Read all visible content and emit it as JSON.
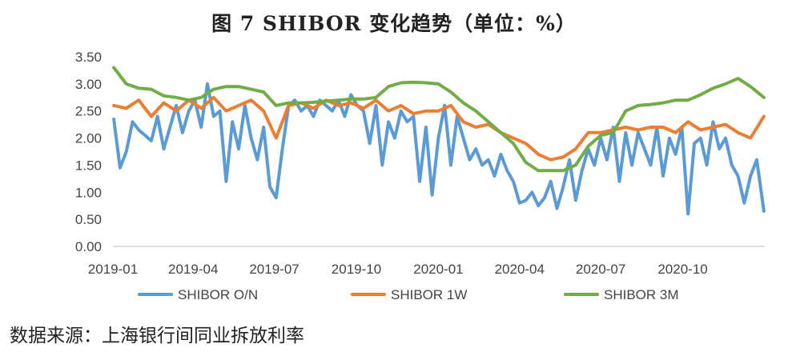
{
  "title": "图 7   SHIBOR 变化趋势（单位：%）",
  "source": "数据来源：上海银行间同业拆放利率",
  "chart_data": {
    "type": "line",
    "ylim": [
      0,
      3.5
    ],
    "y_ticks": [
      "0.00",
      "0.50",
      "1.00",
      "1.50",
      "2.00",
      "2.50",
      "3.00",
      "3.50"
    ],
    "x_ticks": [
      "2019-01",
      "2019-04",
      "2019-07",
      "2019-10",
      "2020-01",
      "2020-04",
      "2020-07",
      "2020-10"
    ],
    "x_range": [
      "2019-01",
      "2020-12"
    ],
    "grid": false,
    "legend": "bottom",
    "series": [
      {
        "name": "SHIBOR O/N",
        "color": "#5B9BD5",
        "x": [
          "2019-01-02",
          "2019-01-09",
          "2019-01-16",
          "2019-01-23",
          "2019-01-30",
          "2019-02-13",
          "2019-02-20",
          "2019-02-27",
          "2019-03-06",
          "2019-03-13",
          "2019-03-20",
          "2019-03-27",
          "2019-04-03",
          "2019-04-10",
          "2019-04-17",
          "2019-04-24",
          "2019-05-01",
          "2019-05-08",
          "2019-05-15",
          "2019-05-22",
          "2019-05-29",
          "2019-06-05",
          "2019-06-12",
          "2019-06-19",
          "2019-06-26",
          "2019-07-03",
          "2019-07-10",
          "2019-07-17",
          "2019-07-24",
          "2019-07-31",
          "2019-08-07",
          "2019-08-14",
          "2019-08-21",
          "2019-08-28",
          "2019-09-04",
          "2019-09-11",
          "2019-09-18",
          "2019-09-25",
          "2019-10-02",
          "2019-10-09",
          "2019-10-16",
          "2019-10-23",
          "2019-10-30",
          "2019-11-06",
          "2019-11-13",
          "2019-11-20",
          "2019-11-27",
          "2019-12-04",
          "2019-12-11",
          "2019-12-18",
          "2019-12-25",
          "2020-01-01",
          "2020-01-08",
          "2020-01-15",
          "2020-01-22",
          "2020-01-29",
          "2020-02-05",
          "2020-02-12",
          "2020-02-19",
          "2020-02-26",
          "2020-03-04",
          "2020-03-11",
          "2020-03-18",
          "2020-03-25",
          "2020-04-01",
          "2020-04-08",
          "2020-04-15",
          "2020-04-22",
          "2020-04-29",
          "2020-05-06",
          "2020-05-13",
          "2020-05-20",
          "2020-05-27",
          "2020-06-03",
          "2020-06-10",
          "2020-06-17",
          "2020-06-24",
          "2020-07-01",
          "2020-07-08",
          "2020-07-15",
          "2020-07-22",
          "2020-07-29",
          "2020-08-05",
          "2020-08-12",
          "2020-08-19",
          "2020-08-26",
          "2020-09-02",
          "2020-09-09",
          "2020-09-16",
          "2020-09-23",
          "2020-09-30",
          "2020-10-07",
          "2020-10-14",
          "2020-10-21",
          "2020-10-28",
          "2020-11-04",
          "2020-11-11",
          "2020-11-18",
          "2020-11-25",
          "2020-12-02",
          "2020-12-09",
          "2020-12-16",
          "2020-12-23",
          "2020-12-31"
        ],
        "values": [
          2.35,
          1.45,
          1.75,
          2.3,
          2.15,
          1.95,
          2.4,
          1.8,
          2.2,
          2.6,
          2.1,
          2.5,
          2.7,
          2.2,
          3.0,
          2.4,
          2.5,
          1.2,
          2.3,
          1.8,
          2.6,
          2.0,
          1.6,
          2.2,
          1.1,
          0.9,
          1.8,
          2.6,
          2.7,
          2.5,
          2.6,
          2.4,
          2.7,
          2.6,
          2.5,
          2.7,
          2.4,
          2.8,
          2.6,
          2.5,
          1.9,
          2.6,
          1.5,
          2.3,
          2.0,
          2.5,
          2.3,
          2.4,
          1.2,
          2.2,
          0.95,
          2.0,
          2.6,
          1.5,
          2.4,
          2.0,
          1.6,
          1.8,
          1.5,
          1.6,
          1.3,
          1.7,
          1.4,
          1.2,
          0.8,
          0.85,
          1.0,
          0.75,
          0.9,
          1.2,
          0.7,
          1.1,
          1.6,
          0.85,
          1.4,
          1.8,
          1.5,
          2.0,
          1.6,
          2.2,
          1.2,
          2.1,
          1.5,
          2.1,
          1.8,
          1.5,
          2.2,
          1.3,
          2.0,
          1.7,
          2.2,
          0.6,
          1.9,
          2.0,
          1.5,
          2.3,
          1.8,
          2.0,
          1.5,
          1.3,
          0.8,
          1.3,
          1.6,
          0.65
        ]
      },
      {
        "name": "SHIBOR 1W",
        "color": "#ED7D31",
        "x": [
          "2019-01-02",
          "2019-01-16",
          "2019-01-30",
          "2019-02-13",
          "2019-02-27",
          "2019-03-13",
          "2019-03-27",
          "2019-04-10",
          "2019-04-24",
          "2019-05-08",
          "2019-05-22",
          "2019-06-05",
          "2019-06-19",
          "2019-07-03",
          "2019-07-17",
          "2019-07-31",
          "2019-08-14",
          "2019-08-28",
          "2019-09-11",
          "2019-09-25",
          "2019-10-09",
          "2019-10-23",
          "2019-11-06",
          "2019-11-20",
          "2019-12-04",
          "2019-12-18",
          "2020-01-01",
          "2020-01-15",
          "2020-01-29",
          "2020-02-12",
          "2020-02-26",
          "2020-03-11",
          "2020-03-25",
          "2020-04-08",
          "2020-04-22",
          "2020-05-06",
          "2020-05-20",
          "2020-06-03",
          "2020-06-17",
          "2020-07-01",
          "2020-07-15",
          "2020-07-29",
          "2020-08-12",
          "2020-08-26",
          "2020-09-09",
          "2020-09-23",
          "2020-10-07",
          "2020-10-21",
          "2020-11-04",
          "2020-11-18",
          "2020-12-02",
          "2020-12-16",
          "2020-12-31"
        ],
        "values": [
          2.6,
          2.55,
          2.7,
          2.4,
          2.65,
          2.5,
          2.7,
          2.55,
          2.75,
          2.5,
          2.6,
          2.7,
          2.5,
          2.0,
          2.6,
          2.65,
          2.55,
          2.7,
          2.6,
          2.65,
          2.55,
          2.7,
          2.5,
          2.6,
          2.45,
          2.5,
          2.5,
          2.6,
          2.3,
          2.2,
          2.25,
          2.1,
          2.0,
          1.9,
          1.7,
          1.6,
          1.65,
          1.8,
          2.1,
          2.1,
          2.15,
          2.2,
          2.15,
          2.2,
          2.2,
          2.1,
          2.3,
          2.15,
          2.2,
          2.25,
          2.1,
          2.0,
          2.4
        ]
      },
      {
        "name": "SHIBOR 3M",
        "color": "#70AD47",
        "x": [
          "2019-01-02",
          "2019-01-16",
          "2019-01-30",
          "2019-02-13",
          "2019-02-27",
          "2019-03-13",
          "2019-03-27",
          "2019-04-10",
          "2019-04-24",
          "2019-05-08",
          "2019-05-22",
          "2019-06-05",
          "2019-06-19",
          "2019-07-03",
          "2019-07-17",
          "2019-07-31",
          "2019-08-14",
          "2019-08-28",
          "2019-09-11",
          "2019-09-25",
          "2019-10-09",
          "2019-10-23",
          "2019-11-06",
          "2019-11-20",
          "2019-12-04",
          "2019-12-18",
          "2020-01-01",
          "2020-01-15",
          "2020-01-29",
          "2020-02-12",
          "2020-02-26",
          "2020-03-11",
          "2020-03-25",
          "2020-04-08",
          "2020-04-22",
          "2020-05-06",
          "2020-05-20",
          "2020-06-03",
          "2020-06-17",
          "2020-07-01",
          "2020-07-15",
          "2020-07-29",
          "2020-08-12",
          "2020-08-26",
          "2020-09-09",
          "2020-09-23",
          "2020-10-07",
          "2020-10-21",
          "2020-11-04",
          "2020-11-18",
          "2020-12-02",
          "2020-12-16",
          "2020-12-31"
        ],
        "values": [
          3.3,
          3.0,
          2.92,
          2.9,
          2.78,
          2.75,
          2.7,
          2.75,
          2.9,
          2.95,
          2.95,
          2.9,
          2.85,
          2.6,
          2.65,
          2.65,
          2.66,
          2.68,
          2.7,
          2.72,
          2.72,
          2.75,
          2.95,
          3.02,
          3.03,
          3.02,
          3.0,
          2.85,
          2.65,
          2.5,
          2.3,
          2.1,
          1.9,
          1.55,
          1.4,
          1.4,
          1.4,
          1.5,
          1.85,
          2.05,
          2.1,
          2.5,
          2.6,
          2.62,
          2.65,
          2.7,
          2.7,
          2.8,
          2.92,
          3.0,
          3.1,
          2.95,
          2.75
        ]
      }
    ]
  }
}
